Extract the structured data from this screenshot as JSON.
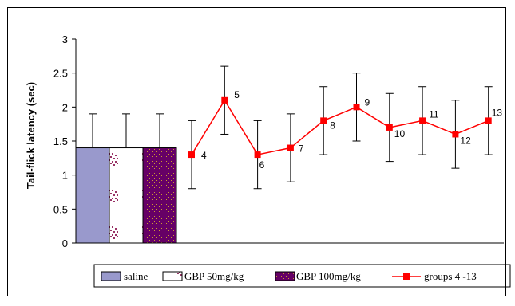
{
  "chart_data": {
    "type": "bar",
    "ylabel": "Tail-flick latency (sec)",
    "ylim": [
      0,
      3
    ],
    "yticks": [
      "0",
      "0.5",
      "1",
      "1.5",
      "2",
      "2.5",
      "3"
    ],
    "ytick_values": [
      0,
      0.5,
      1,
      1.5,
      2,
      2.5,
      3
    ],
    "grid": false,
    "legend_position": "bottom",
    "bars": [
      {
        "name": "saline",
        "value": 1.4,
        "error": 0.5,
        "color": "#9999cc",
        "pattern": "solid"
      },
      {
        "name": "GBP 50mg/kg",
        "value": 1.4,
        "error": 0.5,
        "color": "#993366",
        "pattern": "sparse-dots"
      },
      {
        "name": "GBP 100mg/kg",
        "value": 1.4,
        "error": 0.5,
        "color": "#660066",
        "pattern": "dense-dots"
      }
    ],
    "line_series": {
      "name": "groups 4 -13",
      "color": "#ff0000",
      "x": [
        "4",
        "5",
        "6",
        "7",
        "8",
        "9",
        "10",
        "11",
        "12",
        "13"
      ],
      "values": [
        1.3,
        2.1,
        1.3,
        1.4,
        1.8,
        2.0,
        1.7,
        1.8,
        1.6,
        1.8
      ],
      "errors": [
        0.5,
        0.5,
        0.5,
        0.5,
        0.5,
        0.5,
        0.5,
        0.5,
        0.5,
        0.5
      ]
    }
  },
  "legend": {
    "items": [
      "saline",
      "GBP 50mg/kg",
      "GBP 100mg/kg",
      "groups 4 -13"
    ]
  }
}
